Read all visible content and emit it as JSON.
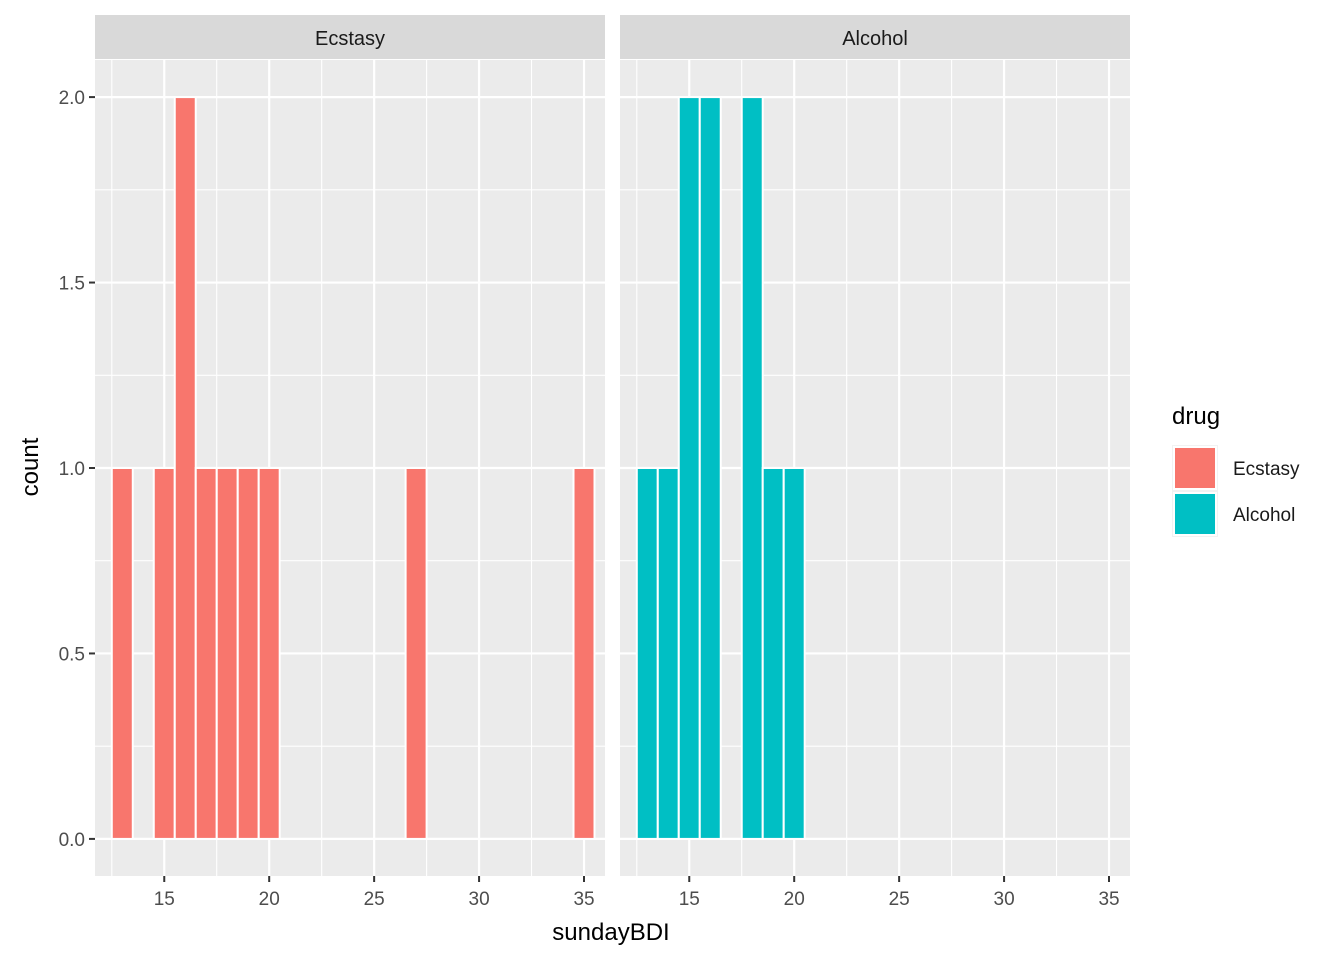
{
  "chart_data": {
    "type": "bar",
    "xlabel": "sundayBDI",
    "ylabel": "count",
    "xlim": [
      11.7,
      36.0
    ],
    "ylim": [
      -0.1,
      2.1
    ],
    "x_ticks": [
      15,
      20,
      25,
      30,
      35
    ],
    "y_ticks": [
      0.0,
      0.5,
      1.0,
      1.5,
      2.0
    ],
    "y_tick_labels": [
      "0.0",
      "0.5",
      "1.0",
      "1.5",
      "2.0"
    ],
    "grid": true,
    "legend": {
      "title": "drug",
      "placement": "right",
      "entries": [
        {
          "label": "Ecstasy",
          "color": "#F8766D"
        },
        {
          "label": "Alcohol",
          "color": "#00BFC4"
        }
      ]
    },
    "facets": [
      {
        "label": "Ecstasy",
        "color": "#F8766D",
        "bars": [
          {
            "x": 13,
            "count": 1
          },
          {
            "x": 15,
            "count": 1
          },
          {
            "x": 16,
            "count": 2
          },
          {
            "x": 17,
            "count": 1
          },
          {
            "x": 18,
            "count": 1
          },
          {
            "x": 19,
            "count": 1
          },
          {
            "x": 20,
            "count": 1
          },
          {
            "x": 27,
            "count": 1
          },
          {
            "x": 35,
            "count": 1
          }
        ]
      },
      {
        "label": "Alcohol",
        "color": "#00BFC4",
        "bars": [
          {
            "x": 13,
            "count": 1
          },
          {
            "x": 14,
            "count": 1
          },
          {
            "x": 15,
            "count": 2
          },
          {
            "x": 16,
            "count": 2
          },
          {
            "x": 18,
            "count": 2
          },
          {
            "x": 19,
            "count": 1
          },
          {
            "x": 20,
            "count": 1
          }
        ]
      }
    ]
  }
}
